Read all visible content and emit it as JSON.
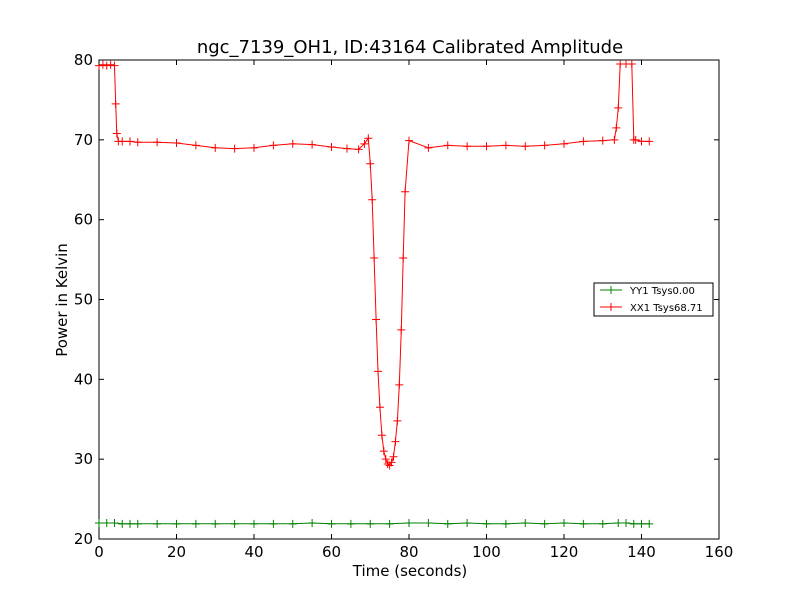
{
  "chart_data": {
    "type": "line",
    "title": "ngc_7139_OH1, ID:43164 Calibrated Amplitude",
    "xlabel": "Time (seconds)",
    "ylabel": "Power in Kelvin",
    "xlim": [
      0,
      160
    ],
    "ylim": [
      20,
      80
    ],
    "xticks": [
      0,
      20,
      40,
      60,
      80,
      100,
      120,
      140,
      160
    ],
    "yticks": [
      20,
      30,
      40,
      50,
      60,
      70,
      80
    ],
    "grid": false,
    "legend_position": "center-right",
    "series": [
      {
        "name": "YY1 Tsys0.00",
        "color": "#008000",
        "marker": "+",
        "x": [
          0,
          2,
          4,
          6,
          8,
          10,
          15,
          20,
          25,
          30,
          35,
          40,
          45,
          50,
          55,
          60,
          65,
          70,
          75,
          80,
          85,
          90,
          95,
          100,
          105,
          110,
          115,
          120,
          125,
          130,
          134,
          136,
          138,
          140,
          142
        ],
        "y": [
          22.0,
          22.0,
          22.0,
          21.9,
          21.9,
          21.9,
          21.9,
          21.9,
          21.9,
          21.9,
          21.9,
          21.9,
          21.9,
          21.9,
          22.0,
          21.9,
          21.9,
          21.9,
          21.9,
          22.0,
          22.0,
          21.9,
          22.0,
          21.9,
          21.9,
          22.0,
          21.9,
          22.0,
          21.9,
          21.9,
          22.0,
          22.0,
          21.9,
          21.9,
          21.9
        ]
      },
      {
        "name": "XX1 Tsys68.71",
        "color": "#ff0000",
        "marker": "+",
        "x": [
          0,
          1,
          2,
          3,
          4,
          4.3,
          4.6,
          5,
          6,
          8,
          10,
          15,
          20,
          25,
          30,
          35,
          40,
          45,
          50,
          55,
          60,
          64,
          67,
          68.5,
          69.5,
          70,
          70.5,
          71,
          71.5,
          72,
          72.5,
          73,
          73.5,
          74,
          74.5,
          75,
          75.5,
          76,
          76.5,
          77,
          77.5,
          78,
          78.5,
          79,
          80,
          85,
          90,
          95,
          100,
          105,
          110,
          115,
          120,
          125,
          130,
          133,
          133.5,
          134,
          134.5,
          136,
          137.5,
          138,
          138.5,
          140,
          142
        ],
        "y": [
          79.3,
          79.4,
          79.3,
          79.4,
          79.3,
          74.5,
          70.8,
          69.8,
          69.8,
          69.8,
          69.7,
          69.7,
          69.6,
          69.3,
          69.0,
          68.9,
          69.0,
          69.3,
          69.5,
          69.4,
          69.1,
          68.9,
          68.8,
          69.5,
          70.2,
          67.0,
          62.5,
          55.2,
          47.5,
          41.0,
          36.5,
          33.0,
          31.0,
          30.0,
          29.4,
          29.2,
          29.6,
          30.3,
          32.2,
          34.8,
          39.3,
          46.2,
          55.2,
          63.5,
          69.9,
          69.0,
          69.3,
          69.2,
          69.2,
          69.3,
          69.2,
          69.3,
          69.5,
          69.8,
          69.9,
          70.0,
          71.5,
          74.0,
          79.5,
          79.5,
          79.5,
          70.0,
          70.0,
          69.8,
          69.8
        ]
      }
    ]
  }
}
